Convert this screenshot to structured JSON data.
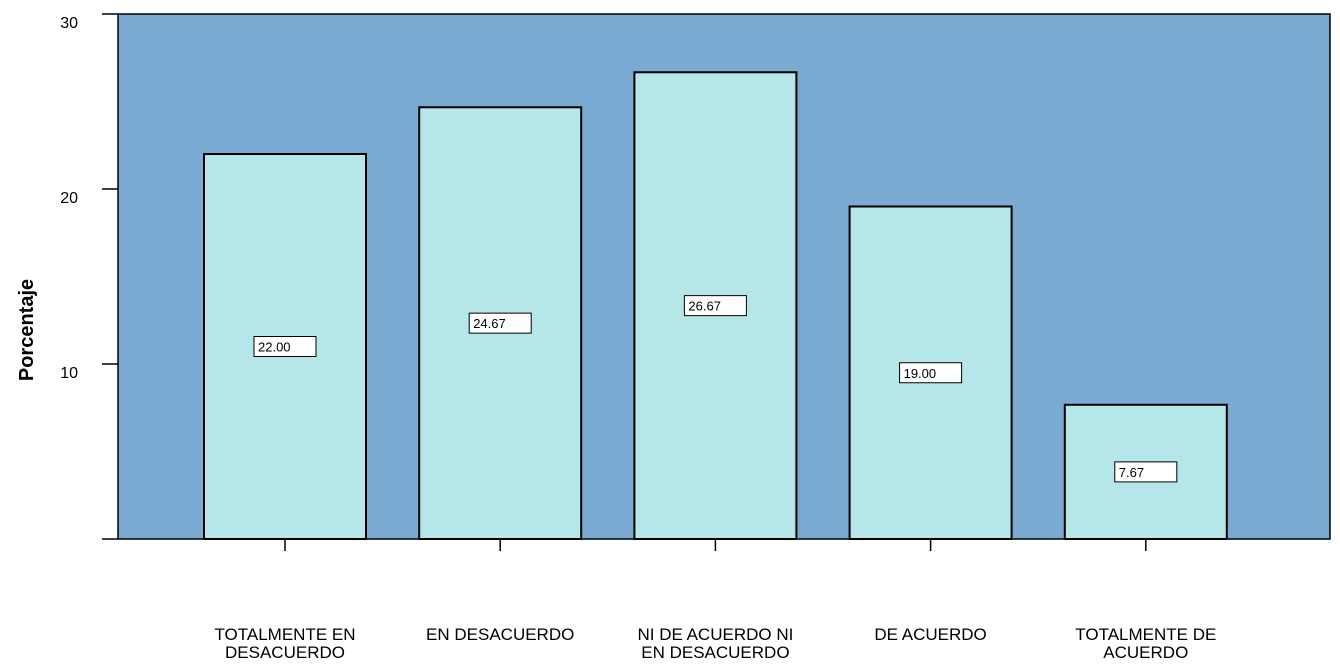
{
  "chart_data": {
    "type": "bar",
    "title": "",
    "ylabel": "Porcentaje",
    "xlabel": "",
    "categories": [
      [
        "TOTALMENTE EN",
        "DESACUERDO"
      ],
      [
        "EN DESACUERDO"
      ],
      [
        "NI DE ACUERDO NI",
        "EN DESACUERDO"
      ],
      [
        "DE ACUERDO"
      ],
      [
        "TOTALMENTE DE",
        "ACUERDO"
      ]
    ],
    "values": [
      22.0,
      24.67,
      26.67,
      19.0,
      7.67
    ],
    "value_labels": [
      "22.00",
      "24.67",
      "26.67",
      "19.00",
      "7.67"
    ],
    "ylim": [
      0,
      30.0
    ],
    "yticks": [
      10,
      20,
      30
    ],
    "ytick_labels": [
      "10",
      "20",
      "30"
    ],
    "grid": false,
    "colors": {
      "plot_background": "#7aa9d2",
      "bar_fill": "#b5e6e8",
      "bar_stroke": "#000000",
      "label_box_fill": "#ffffff"
    }
  }
}
